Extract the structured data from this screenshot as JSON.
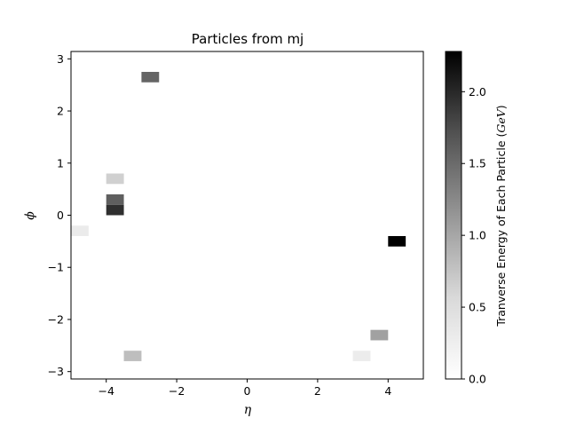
{
  "chart_data": {
    "type": "heatmap",
    "title": "Particles from mj",
    "xlabel": "η",
    "ylabel": "ϕ",
    "xlim": [
      -5,
      5
    ],
    "ylim": [
      -3.14159,
      3.14159
    ],
    "xticks": [
      -4,
      -2,
      0,
      2,
      4
    ],
    "xtick_labels": [
      "−4",
      "−2",
      "0",
      "2",
      "4"
    ],
    "yticks": [
      -3,
      -2,
      -1,
      0,
      1,
      2,
      3
    ],
    "ytick_labels": [
      "−3",
      "−2",
      "−1",
      "0",
      "1",
      "2",
      "3"
    ],
    "bin_width": {
      "eta": 0.5,
      "phi": 0.2
    },
    "cells": [
      {
        "eta": -2.75,
        "phi": 2.65,
        "value": 1.55
      },
      {
        "eta": -3.75,
        "phi": 0.7,
        "value": 0.65
      },
      {
        "eta": -3.75,
        "phi": 0.3,
        "value": 1.6
      },
      {
        "eta": -3.75,
        "phi": 0.1,
        "value": 1.95
      },
      {
        "eta": -4.75,
        "phi": -0.3,
        "value": 0.3
      },
      {
        "eta": 4.25,
        "phi": -0.5,
        "value": 2.28
      },
      {
        "eta": 3.75,
        "phi": -2.3,
        "value": 1.05
      },
      {
        "eta": -3.25,
        "phi": -2.7,
        "value": 0.8
      },
      {
        "eta": 3.25,
        "phi": -2.7,
        "value": 0.28
      }
    ],
    "colorbar": {
      "label": "Tranverse Energy of Each Particle (GeV)",
      "label_prefix": "Tranverse Energy of Each Particle (",
      "label_unit": "GeV",
      "label_suffix": ")",
      "min": 0.0,
      "max": 2.28,
      "ticks": [
        0.0,
        0.5,
        1.0,
        1.5,
        2.0
      ],
      "tick_labels": [
        "0.0",
        "0.5",
        "1.0",
        "1.5",
        "2.0"
      ],
      "colormap": "Greys",
      "color_low": "#ffffff",
      "color_high": "#000000"
    },
    "grid": false
  }
}
